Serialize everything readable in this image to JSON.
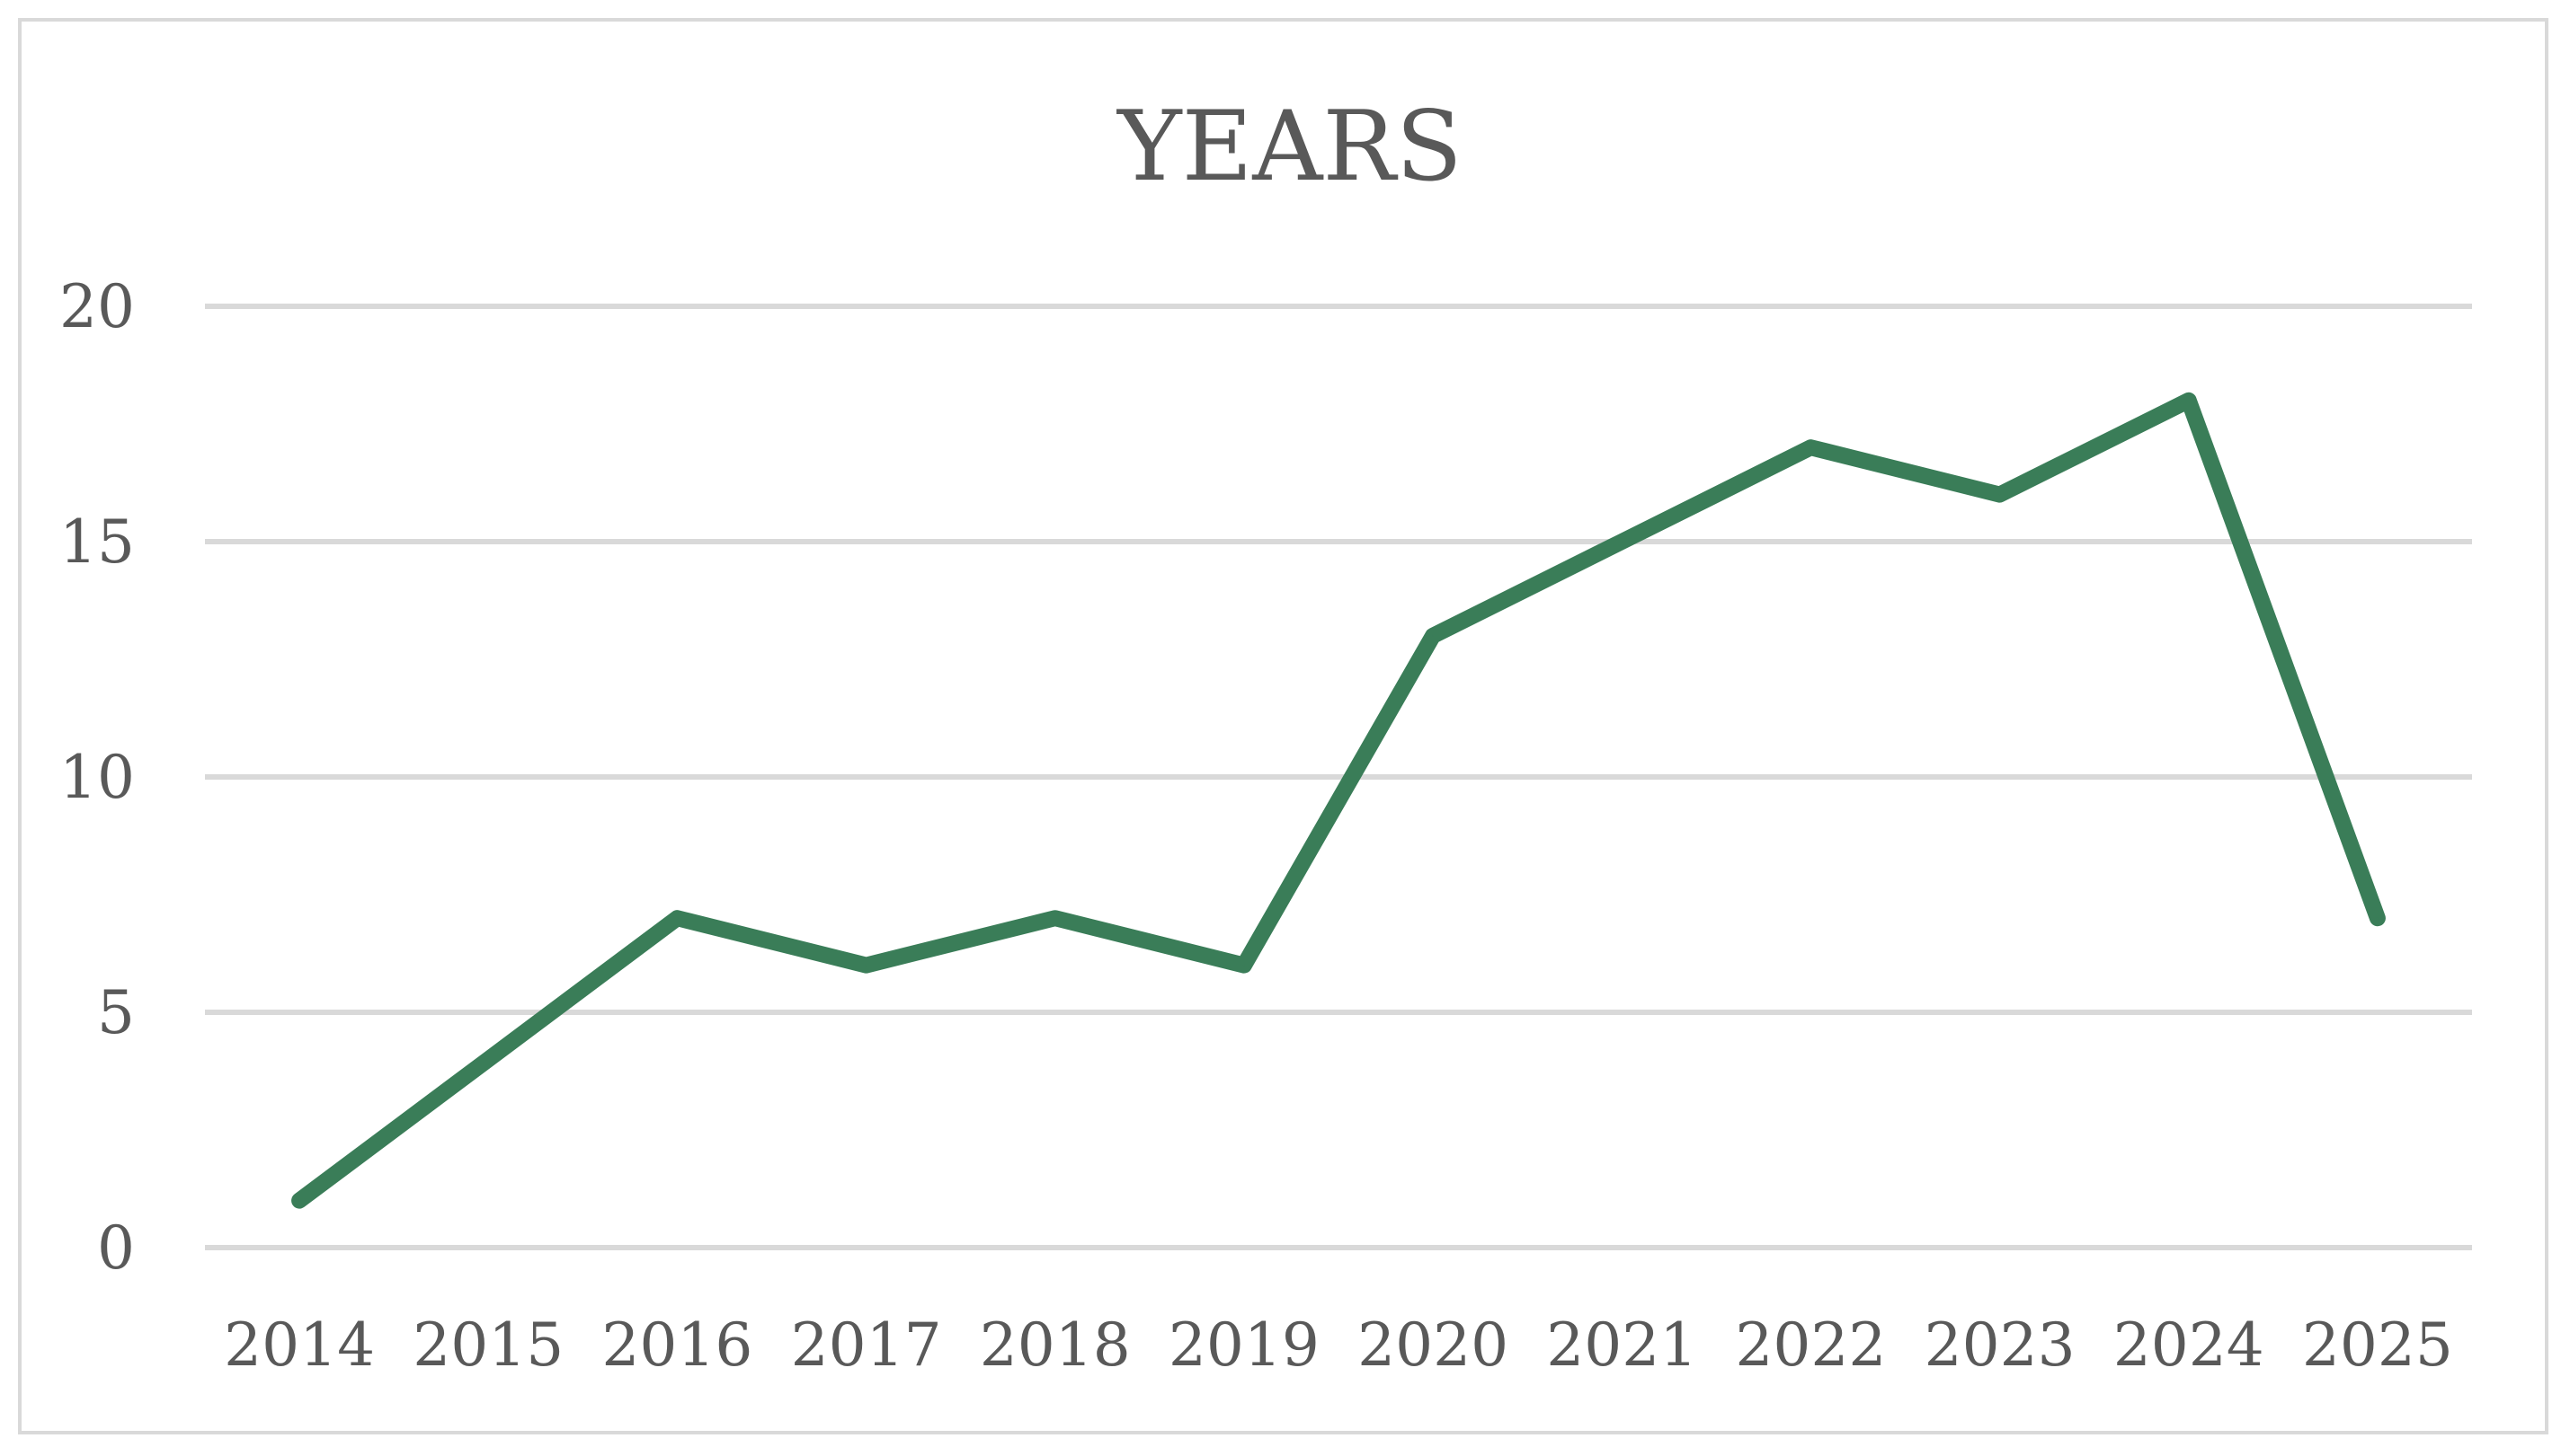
{
  "chart_data": {
    "type": "line",
    "title": "YEARS",
    "xlabel": "",
    "ylabel": "",
    "categories": [
      "2014",
      "2015",
      "2016",
      "2017",
      "2018",
      "2019",
      "2020",
      "2021",
      "2022",
      "2023",
      "2024",
      "2025"
    ],
    "series": [
      {
        "values": [
          1,
          4,
          7,
          6,
          7,
          6,
          13,
          15,
          17,
          16,
          18,
          7
        ],
        "color": "#3a7d58"
      }
    ],
    "ylim": [
      0,
      20
    ],
    "yticks": [
      "0",
      "5",
      "10",
      "15",
      "20"
    ],
    "grid": true,
    "legend": "none"
  }
}
